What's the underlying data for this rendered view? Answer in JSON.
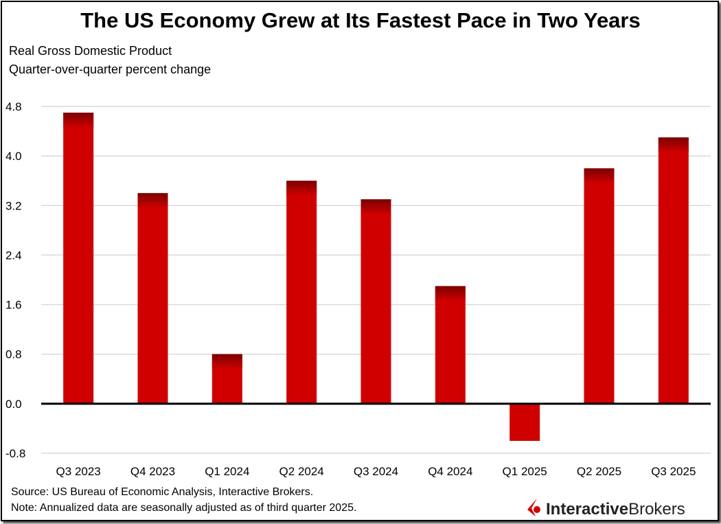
{
  "chart_data": {
    "type": "bar",
    "title": "The US Economy Grew at Its Fastest Pace in Two Years",
    "subtitle": [
      "Real Gross Domestic Product",
      "Quarter-over-quarter percent change"
    ],
    "categories": [
      "Q3 2023",
      "Q4 2023",
      "Q1 2024",
      "Q2 2024",
      "Q3 2024",
      "Q4 2024",
      "Q1 2025",
      "Q2 2025",
      "Q3 2025"
    ],
    "values": [
      4.7,
      3.4,
      0.8,
      3.6,
      3.3,
      1.9,
      -0.6,
      3.8,
      4.3
    ],
    "yticks": [
      "4.8",
      "4.0",
      "3.2",
      "2.4",
      "1.6",
      "0.8",
      "0.0",
      "-0.8"
    ],
    "ylim": [
      -0.8,
      4.8
    ],
    "grid": true,
    "bar_color": "#d00000",
    "bar_top_color": "#7a0000"
  },
  "footer": {
    "source": "Source: US Bureau of Economic Analysis, Interactive Brokers.",
    "note": "Note: Annualized data are seasonally adjusted as of third quarter 2025."
  },
  "logo": {
    "part1": "Interactive",
    "part2": "Brokers",
    "color": "#d00000"
  }
}
